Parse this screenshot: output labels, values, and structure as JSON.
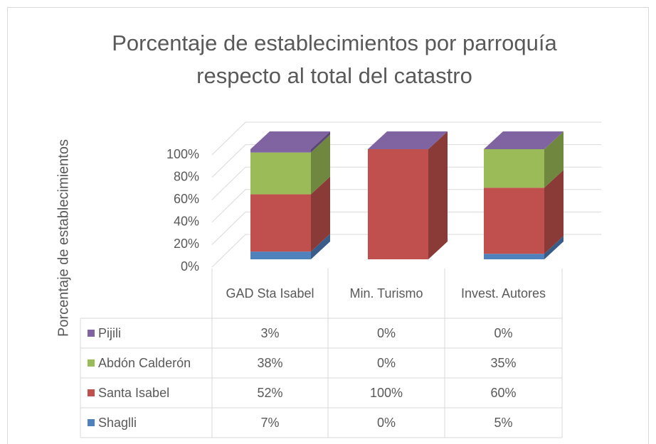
{
  "chart_data": {
    "type": "bar3d_stacked",
    "title": "Porcentaje de establecimientos por parroquía respecto al total del catastro",
    "y_label": "Porcentaje de establecimientos",
    "categories": [
      "GAD Sta Isabel",
      "Min. Turismo",
      "Invest. Autores"
    ],
    "series": [
      {
        "name": "Shaglli",
        "color": "#4f81bd",
        "values": [
          7,
          0,
          5
        ],
        "value_labels": [
          "7%",
          "0%",
          "5%"
        ]
      },
      {
        "name": "Santa Isabel",
        "color": "#c0504d",
        "values": [
          52,
          100,
          60
        ],
        "value_labels": [
          "52%",
          "100%",
          "60%"
        ]
      },
      {
        "name": "Abdón Calderón",
        "color": "#9bbb59",
        "values": [
          38,
          0,
          35
        ],
        "value_labels": [
          "38%",
          "0%",
          "35%"
        ]
      },
      {
        "name": "Pijili",
        "color": "#8064a2",
        "values": [
          3,
          0,
          0
        ],
        "value_labels": [
          "3%",
          "0%",
          "0%"
        ]
      }
    ],
    "ylim": [
      0,
      100
    ],
    "yticks": [
      {
        "value": 0,
        "label": "0%"
      },
      {
        "value": 20,
        "label": "20%"
      },
      {
        "value": 40,
        "label": "40%"
      },
      {
        "value": 60,
        "label": "60%"
      },
      {
        "value": 80,
        "label": "80%"
      },
      {
        "value": 100,
        "label": "100%"
      }
    ],
    "grid": true
  }
}
